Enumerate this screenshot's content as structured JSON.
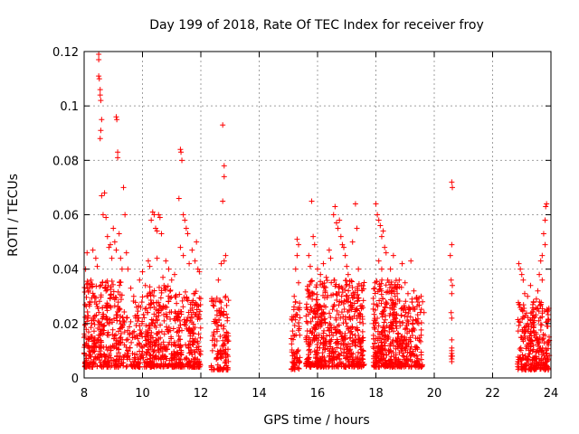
{
  "chart_data": {
    "type": "scatter",
    "title": "Day 199 of 2018, Rate Of TEC Index for receiver froy",
    "xlabel": "GPS time / hours",
    "ylabel": "ROTI / TECUs",
    "xlim": [
      8,
      24
    ],
    "ylim": [
      0,
      0.12
    ],
    "xticks": [
      8,
      10,
      12,
      14,
      16,
      18,
      20,
      22,
      24
    ],
    "xtick_labels": [
      "8",
      "10",
      "12",
      "14",
      "16",
      "18",
      "20",
      "22",
      "24"
    ],
    "yticks": [
      0,
      0.02,
      0.04,
      0.06,
      0.08,
      0.1,
      0.12
    ],
    "ytick_labels": [
      "0",
      "0.02",
      "0.04",
      "0.06",
      "0.08",
      "0.1",
      "0.12"
    ],
    "grid": true,
    "marker": "plus",
    "color": "#ff0000",
    "series": [
      {
        "name": "ROTI",
        "points": [
          [
            8.05,
            0.04
          ],
          [
            8.1,
            0.046
          ],
          [
            8.15,
            0.032
          ],
          [
            8.2,
            0.028
          ],
          [
            8.3,
            0.047
          ],
          [
            8.4,
            0.044
          ],
          [
            8.45,
            0.041
          ],
          [
            8.5,
            0.119
          ],
          [
            8.5,
            0.117
          ],
          [
            8.5,
            0.111
          ],
          [
            8.52,
            0.11
          ],
          [
            8.55,
            0.106
          ],
          [
            8.55,
            0.104
          ],
          [
            8.57,
            0.102
          ],
          [
            8.6,
            0.095
          ],
          [
            8.57,
            0.091
          ],
          [
            8.55,
            0.088
          ],
          [
            8.6,
            0.067
          ],
          [
            8.7,
            0.068
          ],
          [
            8.65,
            0.06
          ],
          [
            8.75,
            0.059
          ],
          [
            8.8,
            0.052
          ],
          [
            8.85,
            0.048
          ],
          [
            8.9,
            0.049
          ],
          [
            8.95,
            0.044
          ],
          [
            9.1,
            0.096
          ],
          [
            9.12,
            0.095
          ],
          [
            9.15,
            0.083
          ],
          [
            9.15,
            0.081
          ],
          [
            9.0,
            0.055
          ],
          [
            9.05,
            0.05
          ],
          [
            9.1,
            0.047
          ],
          [
            9.2,
            0.053
          ],
          [
            9.25,
            0.044
          ],
          [
            9.3,
            0.04
          ],
          [
            9.35,
            0.07
          ],
          [
            9.4,
            0.06
          ],
          [
            9.45,
            0.046
          ],
          [
            9.5,
            0.04
          ],
          [
            9.6,
            0.033
          ],
          [
            9.7,
            0.03
          ],
          [
            9.8,
            0.026
          ],
          [
            9.9,
            0.036
          ],
          [
            10.0,
            0.039
          ],
          [
            10.1,
            0.034
          ],
          [
            10.3,
            0.058
          ],
          [
            10.35,
            0.061
          ],
          [
            10.4,
            0.06
          ],
          [
            10.45,
            0.055
          ],
          [
            10.5,
            0.054
          ],
          [
            10.55,
            0.06
          ],
          [
            10.6,
            0.059
          ],
          [
            10.65,
            0.053
          ],
          [
            10.2,
            0.043
          ],
          [
            10.25,
            0.041
          ],
          [
            10.5,
            0.044
          ],
          [
            10.7,
            0.037
          ],
          [
            10.8,
            0.043
          ],
          [
            10.9,
            0.04
          ],
          [
            11.0,
            0.036
          ],
          [
            11.1,
            0.038
          ],
          [
            11.3,
            0.084
          ],
          [
            11.32,
            0.083
          ],
          [
            11.35,
            0.08
          ],
          [
            11.25,
            0.066
          ],
          [
            11.4,
            0.06
          ],
          [
            11.45,
            0.058
          ],
          [
            11.5,
            0.055
          ],
          [
            11.55,
            0.053
          ],
          [
            11.3,
            0.048
          ],
          [
            11.4,
            0.045
          ],
          [
            11.6,
            0.042
          ],
          [
            11.7,
            0.047
          ],
          [
            11.8,
            0.043
          ],
          [
            11.85,
            0.05
          ],
          [
            11.9,
            0.04
          ],
          [
            11.95,
            0.039
          ],
          [
            12.75,
            0.093
          ],
          [
            12.8,
            0.078
          ],
          [
            12.8,
            0.074
          ],
          [
            12.75,
            0.065
          ],
          [
            12.7,
            0.042
          ],
          [
            12.8,
            0.043
          ],
          [
            12.85,
            0.045
          ],
          [
            12.6,
            0.036
          ],
          [
            12.5,
            0.028
          ],
          [
            15.2,
            0.03
          ],
          [
            15.25,
            0.028
          ],
          [
            15.3,
            0.051
          ],
          [
            15.35,
            0.049
          ],
          [
            15.3,
            0.045
          ],
          [
            15.25,
            0.04
          ],
          [
            15.35,
            0.035
          ],
          [
            15.7,
            0.045
          ],
          [
            15.75,
            0.041
          ],
          [
            15.8,
            0.065
          ],
          [
            15.85,
            0.052
          ],
          [
            15.9,
            0.049
          ],
          [
            16.0,
            0.04
          ],
          [
            16.1,
            0.038
          ],
          [
            16.2,
            0.042
          ],
          [
            16.3,
            0.037
          ],
          [
            16.4,
            0.047
          ],
          [
            16.45,
            0.044
          ],
          [
            16.55,
            0.06
          ],
          [
            16.6,
            0.063
          ],
          [
            16.65,
            0.057
          ],
          [
            16.7,
            0.055
          ],
          [
            16.75,
            0.058
          ],
          [
            16.8,
            0.052
          ],
          [
            16.85,
            0.049
          ],
          [
            16.9,
            0.048
          ],
          [
            16.95,
            0.045
          ],
          [
            17.0,
            0.041
          ],
          [
            17.05,
            0.038
          ],
          [
            17.2,
            0.05
          ],
          [
            17.3,
            0.064
          ],
          [
            17.35,
            0.055
          ],
          [
            17.4,
            0.04
          ],
          [
            17.5,
            0.034
          ],
          [
            18.0,
            0.064
          ],
          [
            18.05,
            0.06
          ],
          [
            18.1,
            0.058
          ],
          [
            18.15,
            0.056
          ],
          [
            18.2,
            0.052
          ],
          [
            18.25,
            0.054
          ],
          [
            18.3,
            0.048
          ],
          [
            18.35,
            0.046
          ],
          [
            18.1,
            0.043
          ],
          [
            18.2,
            0.04
          ],
          [
            18.5,
            0.04
          ],
          [
            18.6,
            0.045
          ],
          [
            18.7,
            0.033
          ],
          [
            18.8,
            0.036
          ],
          [
            18.9,
            0.042
          ],
          [
            19.0,
            0.035
          ],
          [
            19.1,
            0.031
          ],
          [
            19.2,
            0.043
          ],
          [
            19.3,
            0.032
          ],
          [
            19.4,
            0.029
          ],
          [
            19.55,
            0.03
          ],
          [
            19.6,
            0.028
          ],
          [
            19.65,
            0.024
          ],
          [
            20.6,
            0.072
          ],
          [
            20.62,
            0.07
          ],
          [
            20.6,
            0.049
          ],
          [
            20.55,
            0.045
          ],
          [
            20.58,
            0.036
          ],
          [
            20.62,
            0.034
          ],
          [
            20.6,
            0.031
          ],
          [
            20.58,
            0.024
          ],
          [
            20.6,
            0.022
          ],
          [
            20.6,
            0.014
          ],
          [
            20.6,
            0.011
          ],
          [
            20.6,
            0.01
          ],
          [
            20.6,
            0.009
          ],
          [
            20.62,
            0.008
          ],
          [
            20.58,
            0.008
          ],
          [
            20.6,
            0.007
          ],
          [
            20.6,
            0.006
          ],
          [
            22.9,
            0.042
          ],
          [
            22.95,
            0.04
          ],
          [
            23.0,
            0.038
          ],
          [
            23.05,
            0.036
          ],
          [
            23.1,
            0.031
          ],
          [
            23.2,
            0.03
          ],
          [
            23.3,
            0.034
          ],
          [
            23.4,
            0.028
          ],
          [
            23.5,
            0.029
          ],
          [
            23.55,
            0.032
          ],
          [
            23.6,
            0.038
          ],
          [
            23.65,
            0.043
          ],
          [
            23.7,
            0.045
          ],
          [
            23.75,
            0.053
          ],
          [
            23.8,
            0.058
          ],
          [
            23.82,
            0.063
          ],
          [
            23.85,
            0.064
          ],
          [
            23.8,
            0.049
          ],
          [
            23.7,
            0.036
          ]
        ],
        "clusters": [
          {
            "x": [
              8.0,
              9.3
            ],
            "y": [
              0.004,
              0.036
            ],
            "n": 360
          },
          {
            "x": [
              9.3,
              10.1
            ],
            "y": [
              0.004,
              0.03
            ],
            "n": 120
          },
          {
            "x": [
              10.1,
              11.1
            ],
            "y": [
              0.004,
              0.034
            ],
            "n": 260
          },
          {
            "x": [
              11.1,
              12.0
            ],
            "y": [
              0.004,
              0.032
            ],
            "n": 230
          },
          {
            "x": [
              12.35,
              12.95
            ],
            "y": [
              0.003,
              0.03
            ],
            "n": 130
          },
          {
            "x": [
              15.1,
              15.4
            ],
            "y": [
              0.003,
              0.028
            ],
            "n": 70
          },
          {
            "x": [
              15.6,
              16.6
            ],
            "y": [
              0.004,
              0.036
            ],
            "n": 300
          },
          {
            "x": [
              16.6,
              17.6
            ],
            "y": [
              0.004,
              0.036
            ],
            "n": 290
          },
          {
            "x": [
              17.9,
              18.9
            ],
            "y": [
              0.004,
              0.036
            ],
            "n": 330
          },
          {
            "x": [
              18.9,
              19.6
            ],
            "y": [
              0.004,
              0.03
            ],
            "n": 160
          },
          {
            "x": [
              22.85,
              23.95
            ],
            "y": [
              0.003,
              0.028
            ],
            "n": 300
          }
        ]
      }
    ]
  }
}
